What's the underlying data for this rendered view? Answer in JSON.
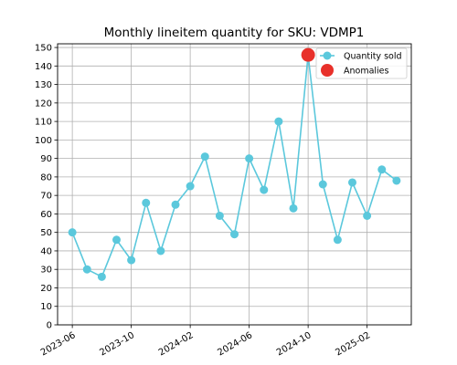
{
  "chart_data": {
    "type": "line",
    "title": "Monthly lineitem quantity for SKU: VDMP1",
    "xlabel": "",
    "ylabel": "",
    "x": [
      "2023-06",
      "2023-07",
      "2023-08",
      "2023-09",
      "2023-10",
      "2023-11",
      "2023-12",
      "2024-01",
      "2024-02",
      "2024-03",
      "2024-04",
      "2024-05",
      "2024-06",
      "2024-07",
      "2024-08",
      "2024-09",
      "2024-10",
      "2024-11",
      "2024-12",
      "2025-01",
      "2025-02",
      "2025-03",
      "2025-04"
    ],
    "xticks": [
      "2023-06",
      "2023-10",
      "2024-02",
      "2024-06",
      "2024-10",
      "2025-02"
    ],
    "yticks": [
      0,
      10,
      20,
      30,
      40,
      50,
      60,
      70,
      80,
      90,
      100,
      110,
      120,
      130,
      140,
      150
    ],
    "ylim": [
      0,
      152
    ],
    "xlim": [
      "2023-05",
      "2025-05"
    ],
    "grid": true,
    "legend_position": "top-right",
    "series": [
      {
        "name": "Quantity sold",
        "color": "#5bc8dc",
        "values": [
          50,
          30,
          26,
          46,
          35,
          66,
          40,
          65,
          75,
          91,
          59,
          49,
          90,
          73,
          110,
          63,
          146,
          76,
          46,
          77,
          59,
          84,
          78
        ]
      }
    ],
    "anomalies": {
      "name": "Anomalies",
      "color": "#e8302a",
      "x": [
        "2024-10"
      ],
      "values": [
        146
      ]
    }
  }
}
